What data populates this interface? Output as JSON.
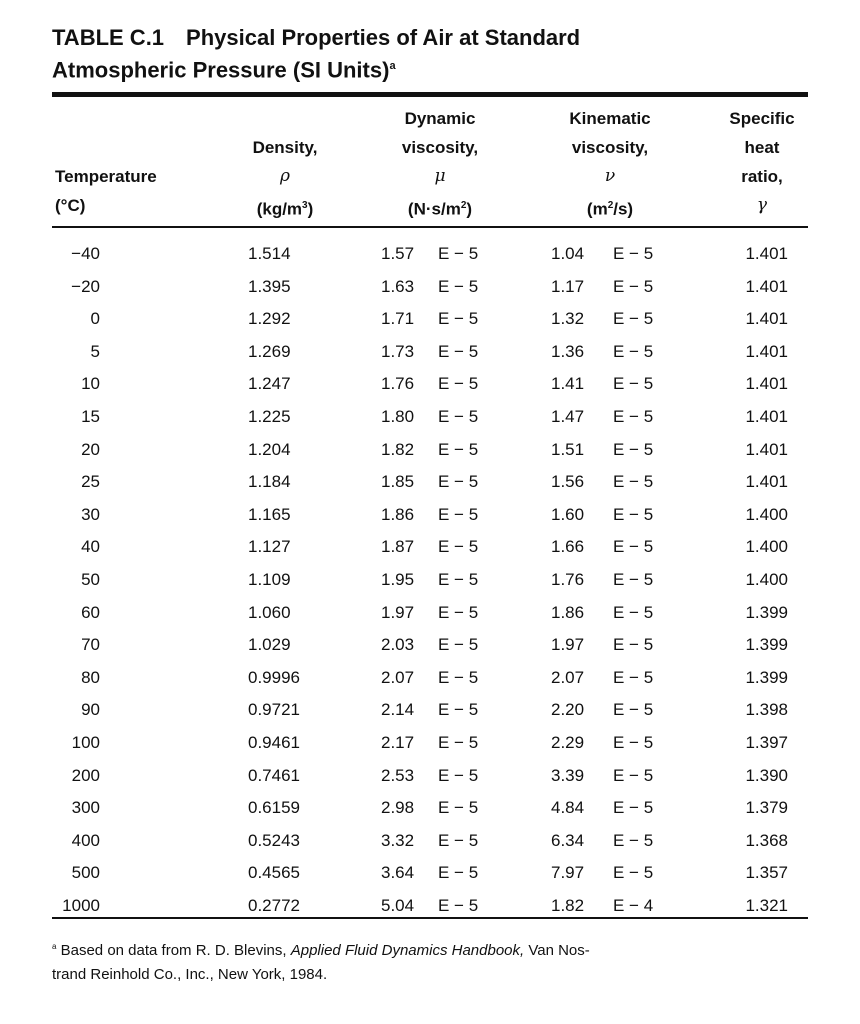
{
  "title": {
    "label": "TABLE C.1",
    "line1": "Physical Properties of Air at Standard",
    "line2": "Atmospheric Pressure (SI Units)",
    "footnote_mark": "a"
  },
  "headers": {
    "temperature": {
      "line1": "Temperature",
      "unit": "(°C)"
    },
    "density": {
      "line1": "Density,",
      "symbol": "ρ",
      "unit_base": "(kg/m",
      "unit_exp": "3",
      "unit_end": ")"
    },
    "dynamic_viscosity": {
      "line1": "Dynamic",
      "line2": "viscosity,",
      "symbol": "μ",
      "unit_base": "(N·s/m",
      "unit_exp": "2",
      "unit_end": ")"
    },
    "kinematic_viscosity": {
      "line1": "Kinematic",
      "line2": "viscosity,",
      "symbol": "ν",
      "unit_base": "(m",
      "unit_exp": "2",
      "unit_end": "/s)"
    },
    "specific_heat_ratio": {
      "line1": "Specific",
      "line2": "heat",
      "line3": "ratio,",
      "symbol": "γ"
    }
  },
  "rows": [
    {
      "temperature": "−40",
      "density": "1.514",
      "mu": "1.57",
      "mu_exp": "E − 5",
      "nu": "1.04",
      "nu_exp": "E − 5",
      "k": "1.401"
    },
    {
      "temperature": "−20",
      "density": "1.395",
      "mu": "1.63",
      "mu_exp": "E − 5",
      "nu": "1.17",
      "nu_exp": "E − 5",
      "k": "1.401"
    },
    {
      "temperature": "0",
      "density": "1.292",
      "mu": "1.71",
      "mu_exp": "E − 5",
      "nu": "1.32",
      "nu_exp": "E − 5",
      "k": "1.401"
    },
    {
      "temperature": "5",
      "density": "1.269",
      "mu": "1.73",
      "mu_exp": "E − 5",
      "nu": "1.36",
      "nu_exp": "E − 5",
      "k": "1.401"
    },
    {
      "temperature": "10",
      "density": "1.247",
      "mu": "1.76",
      "mu_exp": "E − 5",
      "nu": "1.41",
      "nu_exp": "E − 5",
      "k": "1.401"
    },
    {
      "temperature": "15",
      "density": "1.225",
      "mu": "1.80",
      "mu_exp": "E − 5",
      "nu": "1.47",
      "nu_exp": "E − 5",
      "k": "1.401"
    },
    {
      "temperature": "20",
      "density": "1.204",
      "mu": "1.82",
      "mu_exp": "E − 5",
      "nu": "1.51",
      "nu_exp": "E − 5",
      "k": "1.401"
    },
    {
      "temperature": "25",
      "density": "1.184",
      "mu": "1.85",
      "mu_exp": "E − 5",
      "nu": "1.56",
      "nu_exp": "E − 5",
      "k": "1.401"
    },
    {
      "temperature": "30",
      "density": "1.165",
      "mu": "1.86",
      "mu_exp": "E − 5",
      "nu": "1.60",
      "nu_exp": "E − 5",
      "k": "1.400"
    },
    {
      "temperature": "40",
      "density": "1.127",
      "mu": "1.87",
      "mu_exp": "E − 5",
      "nu": "1.66",
      "nu_exp": "E − 5",
      "k": "1.400"
    },
    {
      "temperature": "50",
      "density": "1.109",
      "mu": "1.95",
      "mu_exp": "E − 5",
      "nu": "1.76",
      "nu_exp": "E − 5",
      "k": "1.400"
    },
    {
      "temperature": "60",
      "density": "1.060",
      "mu": "1.97",
      "mu_exp": "E − 5",
      "nu": "1.86",
      "nu_exp": "E − 5",
      "k": "1.399"
    },
    {
      "temperature": "70",
      "density": "1.029",
      "mu": "2.03",
      "mu_exp": "E − 5",
      "nu": "1.97",
      "nu_exp": "E − 5",
      "k": "1.399"
    },
    {
      "temperature": "80",
      "density": "0.9996",
      "mu": "2.07",
      "mu_exp": "E − 5",
      "nu": "2.07",
      "nu_exp": "E − 5",
      "k": "1.399"
    },
    {
      "temperature": "90",
      "density": "0.9721",
      "mu": "2.14",
      "mu_exp": "E − 5",
      "nu": "2.20",
      "nu_exp": "E − 5",
      "k": "1.398"
    },
    {
      "temperature": "100",
      "density": "0.9461",
      "mu": "2.17",
      "mu_exp": "E − 5",
      "nu": "2.29",
      "nu_exp": "E − 5",
      "k": "1.397"
    },
    {
      "temperature": "200",
      "density": "0.7461",
      "mu": "2.53",
      "mu_exp": "E − 5",
      "nu": "3.39",
      "nu_exp": "E − 5",
      "k": "1.390"
    },
    {
      "temperature": "300",
      "density": "0.6159",
      "mu": "2.98",
      "mu_exp": "E − 5",
      "nu": "4.84",
      "nu_exp": "E − 5",
      "k": "1.379"
    },
    {
      "temperature": "400",
      "density": "0.5243",
      "mu": "3.32",
      "mu_exp": "E − 5",
      "nu": "6.34",
      "nu_exp": "E − 5",
      "k": "1.368"
    },
    {
      "temperature": "500",
      "density": "0.4565",
      "mu": "3.64",
      "mu_exp": "E − 5",
      "nu": "7.97",
      "nu_exp": "E − 5",
      "k": "1.357"
    },
    {
      "temperature": "1000",
      "density": "0.2772",
      "mu": "5.04",
      "mu_exp": "E − 5",
      "nu": "1.82",
      "nu_exp": "E − 4",
      "k": "1.321"
    }
  ],
  "footnote": {
    "mark": "a",
    "text_before": " Based on data from R. D. Blevins, ",
    "book": "Applied Fluid Dynamics Handbook,",
    "text_after": " Van Nos-",
    "line2": "trand Reinhold Co., Inc., New York, 1984."
  }
}
